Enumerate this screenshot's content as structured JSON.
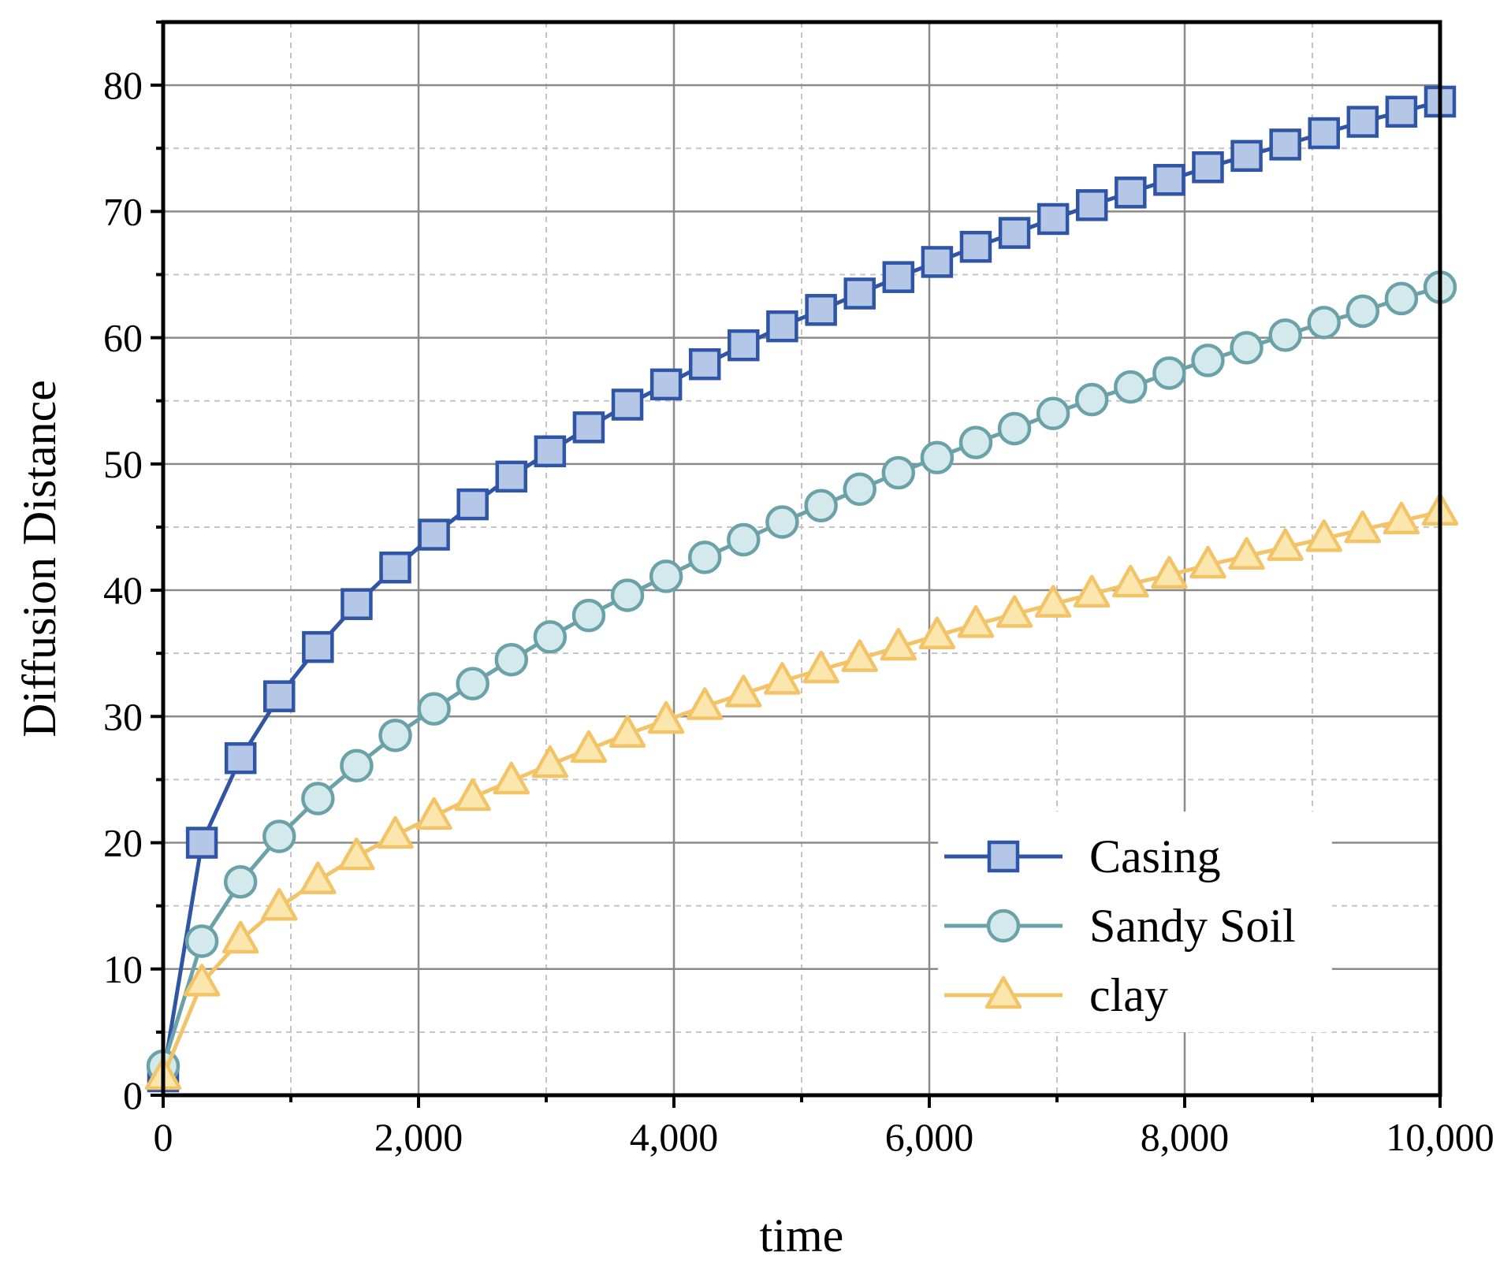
{
  "chart_data": {
    "type": "line",
    "title": "",
    "xlabel": "time",
    "ylabel": "Diffusion Distance",
    "xlim": [
      0,
      10000
    ],
    "ylim": [
      0,
      85
    ],
    "grid": true,
    "legend_position": "bottom-right",
    "x_ticks": [
      0,
      2000,
      4000,
      6000,
      8000,
      10000
    ],
    "x_tick_labels": [
      "0",
      "2,000",
      "4,000",
      "6,000",
      "8,000",
      "10,000"
    ],
    "y_ticks": [
      0,
      10,
      20,
      30,
      40,
      50,
      60,
      70,
      80
    ],
    "y_tick_labels": [
      "0",
      "10",
      "20",
      "30",
      "40",
      "50",
      "60",
      "70",
      "80"
    ],
    "x": [
      0,
      303,
      606,
      909,
      1212,
      1515,
      1818,
      2121,
      2424,
      2727,
      3030,
      3333,
      3636,
      3939,
      4242,
      4545,
      4848,
      5152,
      5455,
      5758,
      6061,
      6364,
      6667,
      6970,
      7273,
      7576,
      7879,
      8182,
      8485,
      8788,
      9091,
      9394,
      9697,
      10000
    ],
    "series": [
      {
        "name": "Casing",
        "color": "#2f55a4",
        "fill": "#b4c7e7",
        "marker": "square",
        "values": [
          1.5,
          20.0,
          26.7,
          31.6,
          35.5,
          38.9,
          41.8,
          44.4,
          46.8,
          49.0,
          51.0,
          52.9,
          54.7,
          56.3,
          57.9,
          59.4,
          60.9,
          62.2,
          63.5,
          64.8,
          66.0,
          67.2,
          68.3,
          69.4,
          70.5,
          71.5,
          72.5,
          73.5,
          74.4,
          75.3,
          76.2,
          77.1,
          77.9,
          78.7
        ]
      },
      {
        "name": "Sandy Soil",
        "color": "#6aa2a8",
        "fill": "#d3e9ec",
        "marker": "circle",
        "values": [
          2.3,
          12.2,
          16.9,
          20.5,
          23.5,
          26.1,
          28.5,
          30.6,
          32.6,
          34.5,
          36.3,
          38.0,
          39.6,
          41.1,
          42.6,
          44.0,
          45.4,
          46.7,
          48.0,
          49.3,
          50.5,
          51.7,
          52.8,
          54.0,
          55.1,
          56.1,
          57.2,
          58.2,
          59.2,
          60.2,
          61.2,
          62.1,
          63.1,
          64.0
        ]
      },
      {
        "name": "clay",
        "color": "#f2c467",
        "fill": "#fbe7ae",
        "marker": "triangle",
        "values": [
          1.5,
          8.9,
          12.3,
          14.9,
          17.0,
          18.9,
          20.6,
          22.1,
          23.6,
          24.9,
          26.2,
          27.4,
          28.6,
          29.7,
          30.8,
          31.8,
          32.8,
          33.7,
          34.6,
          35.5,
          36.4,
          37.3,
          38.1,
          38.9,
          39.7,
          40.5,
          41.2,
          42.0,
          42.7,
          43.4,
          44.1,
          44.8,
          45.5,
          46.2
        ]
      }
    ]
  }
}
